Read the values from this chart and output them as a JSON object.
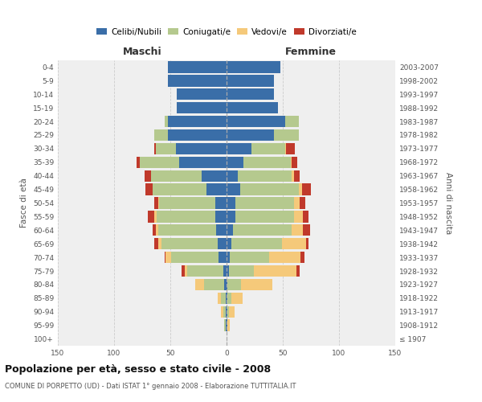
{
  "age_groups": [
    "100+",
    "95-99",
    "90-94",
    "85-89",
    "80-84",
    "75-79",
    "70-74",
    "65-69",
    "60-64",
    "55-59",
    "50-54",
    "45-49",
    "40-44",
    "35-39",
    "30-34",
    "25-29",
    "20-24",
    "15-19",
    "10-14",
    "5-9",
    "0-4"
  ],
  "birth_years": [
    "≤ 1907",
    "1908-1912",
    "1913-1917",
    "1918-1922",
    "1923-1927",
    "1928-1932",
    "1933-1937",
    "1938-1942",
    "1943-1947",
    "1948-1952",
    "1953-1957",
    "1958-1962",
    "1963-1967",
    "1968-1972",
    "1973-1977",
    "1978-1982",
    "1983-1987",
    "1988-1992",
    "1993-1997",
    "1998-2002",
    "2003-2007"
  ],
  "male": {
    "celibi": [
      0,
      1,
      1,
      1,
      2,
      3,
      7,
      8,
      9,
      10,
      10,
      18,
      22,
      42,
      45,
      52,
      52,
      44,
      44,
      52,
      52
    ],
    "coniugati": [
      0,
      1,
      2,
      4,
      18,
      32,
      42,
      50,
      52,
      52,
      50,
      48,
      45,
      35,
      18,
      12,
      3,
      0,
      0,
      0,
      0
    ],
    "vedovi": [
      0,
      0,
      2,
      3,
      8,
      2,
      5,
      3,
      2,
      2,
      1,
      0,
      0,
      0,
      0,
      0,
      0,
      0,
      0,
      0,
      0
    ],
    "divorziati": [
      0,
      0,
      0,
      0,
      0,
      3,
      1,
      3,
      3,
      6,
      3,
      6,
      6,
      3,
      1,
      0,
      0,
      0,
      0,
      0,
      0
    ]
  },
  "female": {
    "nubili": [
      0,
      1,
      1,
      1,
      1,
      2,
      3,
      4,
      6,
      8,
      8,
      12,
      10,
      15,
      22,
      42,
      52,
      46,
      42,
      42,
      48
    ],
    "coniugate": [
      0,
      0,
      1,
      3,
      12,
      22,
      35,
      45,
      52,
      52,
      52,
      52,
      48,
      42,
      30,
      22,
      12,
      0,
      0,
      0,
      0
    ],
    "vedove": [
      0,
      2,
      5,
      10,
      28,
      38,
      28,
      22,
      10,
      8,
      5,
      3,
      2,
      1,
      1,
      0,
      0,
      0,
      0,
      0,
      0
    ],
    "divorziate": [
      0,
      0,
      0,
      0,
      0,
      3,
      3,
      2,
      6,
      5,
      5,
      8,
      5,
      5,
      8,
      0,
      0,
      0,
      0,
      0,
      0
    ]
  },
  "colors": {
    "celibi": "#3a6ea8",
    "coniugati": "#b5c98e",
    "vedovi": "#f5c97a",
    "divorziati": "#c0392b"
  },
  "xlim": 150,
  "title": "Popolazione per età, sesso e stato civile - 2008",
  "subtitle": "COMUNE DI PORPETTO (UD) - Dati ISTAT 1° gennaio 2008 - Elaborazione TUTTITALIA.IT",
  "xlabel_left": "Maschi",
  "xlabel_right": "Femmine",
  "ylabel_left": "Fasce di età",
  "ylabel_right": "Anni di nascita",
  "legend_labels": [
    "Celibi/Nubili",
    "Coniugati/e",
    "Vedovi/e",
    "Divorziati/e"
  ],
  "bg_color": "#ffffff",
  "plot_bg_color": "#efefef"
}
